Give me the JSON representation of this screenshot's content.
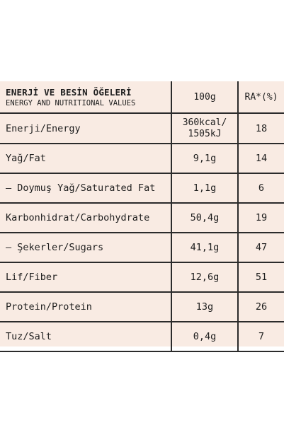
{
  "table": {
    "header": {
      "title": "ENERJİ VE BESİN ÖĞELERİ",
      "subtitle": "ENERGY AND NUTRITIONAL VALUES",
      "col_per100": "100g",
      "col_ra": "RA*(%)"
    },
    "rows": [
      {
        "label": "Enerji/Energy",
        "value_line1": "360kcal/",
        "value_line2": "1505kJ",
        "ra": "18"
      },
      {
        "label": "Yağ/Fat",
        "value": "9,1g",
        "ra": "14"
      },
      {
        "label": "– Doymuş Yağ/Saturated Fat",
        "value": "1,1g",
        "ra": "6"
      },
      {
        "label": "Karbonhidrat/Carbohydrate",
        "value": "50,4g",
        "ra": "19"
      },
      {
        "label": "– Şekerler/Sugars",
        "value": "41,1g",
        "ra": "47"
      },
      {
        "label": "Lif/Fiber",
        "value": "12,6g",
        "ra": "51"
      },
      {
        "label": "Protein/Protein",
        "value": "13g",
        "ra": "26"
      },
      {
        "label": "Tuz/Salt",
        "value": "0,4g",
        "ra": "7"
      }
    ]
  },
  "colors": {
    "background": "#f9ebe3",
    "lines": "#2b2b2b",
    "text": "#1e1e1e"
  }
}
